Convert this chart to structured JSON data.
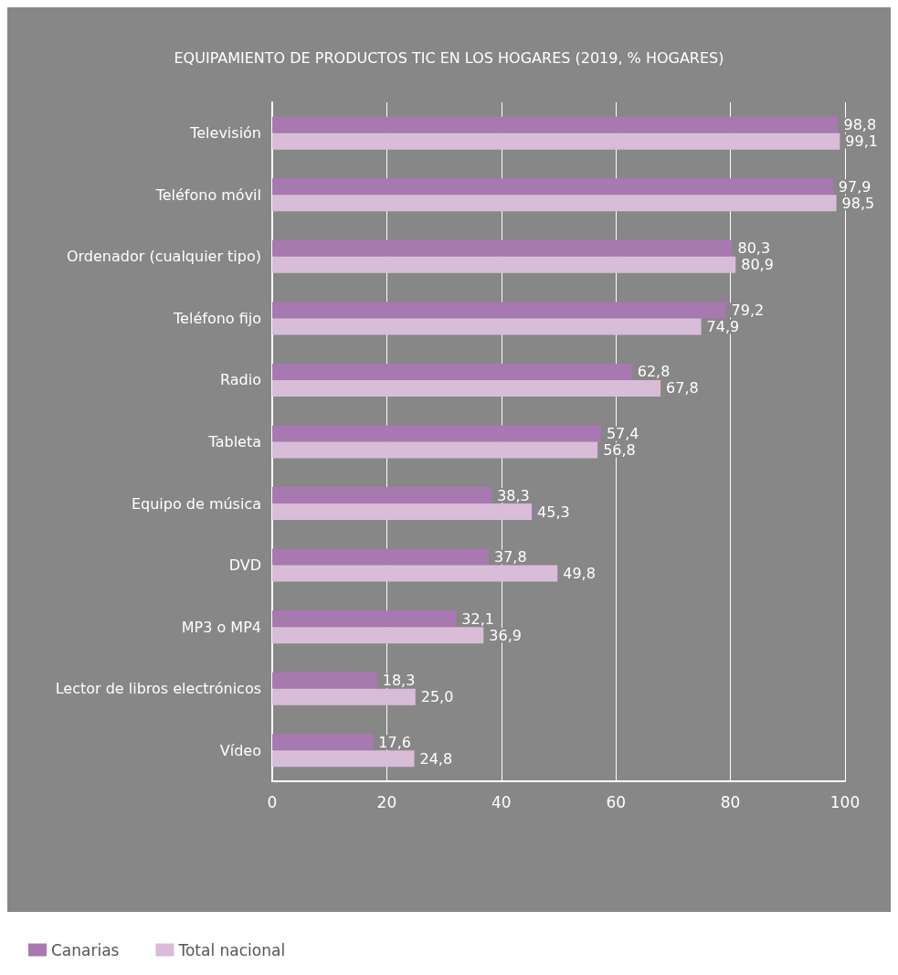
{
  "chart_data": {
    "type": "bar",
    "orientation": "horizontal",
    "title": "EQUIPAMIENTO DE PRODUCTOS TIC EN LOS HOGARES (2019, % HOGARES)",
    "categories": [
      "Televisión",
      "Teléfono móvil",
      "Ordenador (cualquier tipo)",
      "Teléfono fijo",
      "Radio",
      "Tableta",
      "Equipo de música",
      "DVD",
      "MP3 o MP4",
      "Lector de libros electrónicos",
      "Vídeo"
    ],
    "series": [
      {
        "name": "Canarias",
        "color": "#a878b0",
        "values": [
          98.8,
          97.9,
          80.3,
          79.2,
          62.8,
          57.4,
          38.3,
          37.8,
          32.1,
          18.3,
          17.6
        ],
        "value_labels": [
          "98,8",
          "97,9",
          "80,3",
          "79,2",
          "62,8",
          "57,4",
          "38,3",
          "37,8",
          "32,1",
          "18,3",
          "17,6"
        ]
      },
      {
        "name": "Total nacional",
        "color": "#d8bcd8",
        "values": [
          99.1,
          98.5,
          80.9,
          74.9,
          67.8,
          56.8,
          45.3,
          49.8,
          36.9,
          25.0,
          24.8
        ],
        "value_labels": [
          "99,1",
          "98,5",
          "80,9",
          "74,9",
          "67,8",
          "56,8",
          "45,3",
          "49,8",
          "36,9",
          "25,0",
          "24,8"
        ]
      }
    ],
    "xlim": [
      0,
      100
    ],
    "xticks": [
      0,
      20,
      40,
      60,
      80,
      100
    ],
    "grid": "x",
    "legend": "bottom left"
  }
}
